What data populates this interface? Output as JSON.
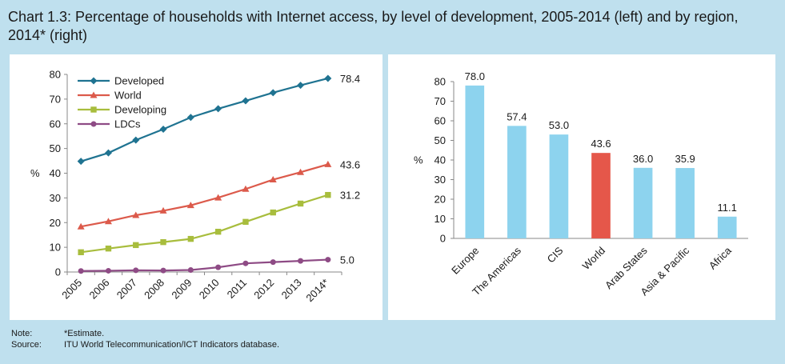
{
  "title": "Chart 1.3: Percentage of households with Internet access, by level of development, 2005-2014 (left) and by region, 2014* (right)",
  "note_label": "Note:",
  "note_text": "*Estimate.",
  "source_label": "Source:",
  "source_text": "ITU World Telecommunication/ICT Indicators database.",
  "chart_data": [
    {
      "type": "line",
      "x": [
        "2005",
        "2006",
        "2007",
        "2008",
        "2009",
        "2010",
        "2011",
        "2012",
        "2013",
        "2014*"
      ],
      "ylabel": "%",
      "ylim": [
        0,
        80
      ],
      "yticks": [
        0,
        10,
        20,
        30,
        40,
        50,
        60,
        70,
        80
      ],
      "grid": false,
      "legend": "top-left",
      "series": [
        {
          "name": "Developed",
          "color": "#1f7391",
          "marker": "diamond",
          "values": [
            44.8,
            48.2,
            53.4,
            57.8,
            62.6,
            66.1,
            69.3,
            72.6,
            75.6,
            78.4
          ],
          "end_label": "78.4"
        },
        {
          "name": "World",
          "color": "#dc5a4b",
          "marker": "triangle",
          "values": [
            18.4,
            20.5,
            23.0,
            24.8,
            27.0,
            30.1,
            33.6,
            37.4,
            40.4,
            43.6
          ],
          "end_label": "43.6"
        },
        {
          "name": "Developing",
          "color": "#a8bd3d",
          "marker": "square",
          "values": [
            8.0,
            9.5,
            10.9,
            12.1,
            13.4,
            16.3,
            20.3,
            24.1,
            27.7,
            31.2
          ],
          "end_label": "31.2"
        },
        {
          "name": "LDCs",
          "color": "#8e4b85",
          "marker": "circle",
          "values": [
            0.4,
            0.5,
            0.7,
            0.6,
            0.8,
            1.9,
            3.5,
            4.0,
            4.5,
            5.0
          ],
          "end_label": "5.0"
        }
      ]
    },
    {
      "type": "bar",
      "categories": [
        "Europe",
        "The Americas",
        "CIS",
        "World",
        "Arab States",
        "Asia & Pacific",
        "Africa"
      ],
      "values": [
        78.0,
        57.4,
        53.0,
        43.6,
        36.0,
        35.9,
        11.1
      ],
      "labels": [
        "78.0",
        "57.4",
        "53.0",
        "43.6",
        "36.0",
        "35.9",
        "11.1"
      ],
      "colors": [
        "#8dd3ee",
        "#8dd3ee",
        "#8dd3ee",
        "#e5574a",
        "#8dd3ee",
        "#8dd3ee",
        "#8dd3ee"
      ],
      "ylabel": "%",
      "ylim": [
        0,
        80
      ],
      "yticks": [
        0,
        10,
        20,
        30,
        40,
        50,
        60,
        70,
        80
      ],
      "grid": false
    }
  ]
}
